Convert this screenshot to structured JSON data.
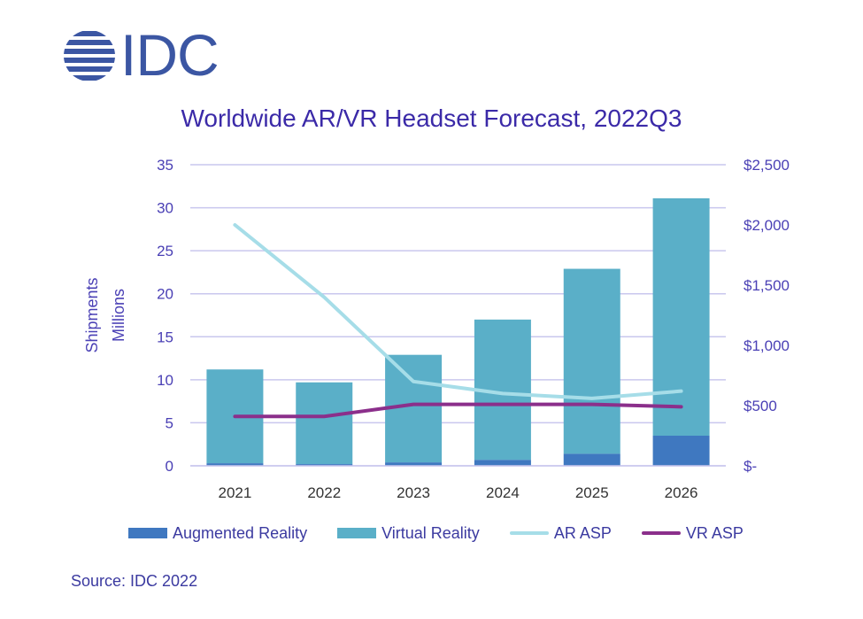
{
  "logo": {
    "text": "IDC",
    "icon": "idc-globe-icon",
    "color": "#3b56a3"
  },
  "title": "Worldwide AR/VR Headset Forecast, 2022Q3",
  "source": "Source: IDC 2022",
  "chart_data": {
    "type": "bar",
    "title": "Worldwide AR/VR Headset Forecast, 2022Q3",
    "categories": [
      "2021",
      "2022",
      "2023",
      "2024",
      "2025",
      "2026"
    ],
    "ylabel": [
      "Shipments",
      "Millions"
    ],
    "ylim": [
      0,
      35
    ],
    "y_ticks": [
      "0",
      "5",
      "10",
      "15",
      "20",
      "25",
      "30",
      "35"
    ],
    "y2lim": [
      0,
      2500
    ],
    "y2_ticks": [
      "$-",
      "$500",
      "$1,000",
      "$1,500",
      "$2,000",
      "$2,500"
    ],
    "stacked": true,
    "grid": true,
    "legend_position": "bottom",
    "series": [
      {
        "name": "Augmented Reality",
        "type": "bar",
        "axis": "left",
        "color": "#3f78c0",
        "values": [
          0.3,
          0.2,
          0.4,
          0.7,
          1.4,
          3.5
        ]
      },
      {
        "name": "Virtual Reality",
        "type": "bar",
        "axis": "left",
        "color": "#5aafc8",
        "values": [
          10.9,
          9.5,
          12.5,
          16.3,
          21.5,
          27.6
        ]
      },
      {
        "name": "AR ASP",
        "type": "line",
        "axis": "right",
        "color": "#a6dde8",
        "values": [
          2000,
          1400,
          700,
          600,
          560,
          620
        ]
      },
      {
        "name": "VR ASP",
        "type": "line",
        "axis": "right",
        "color": "#8b2f8b",
        "values": [
          410,
          410,
          510,
          510,
          510,
          490
        ]
      }
    ]
  }
}
